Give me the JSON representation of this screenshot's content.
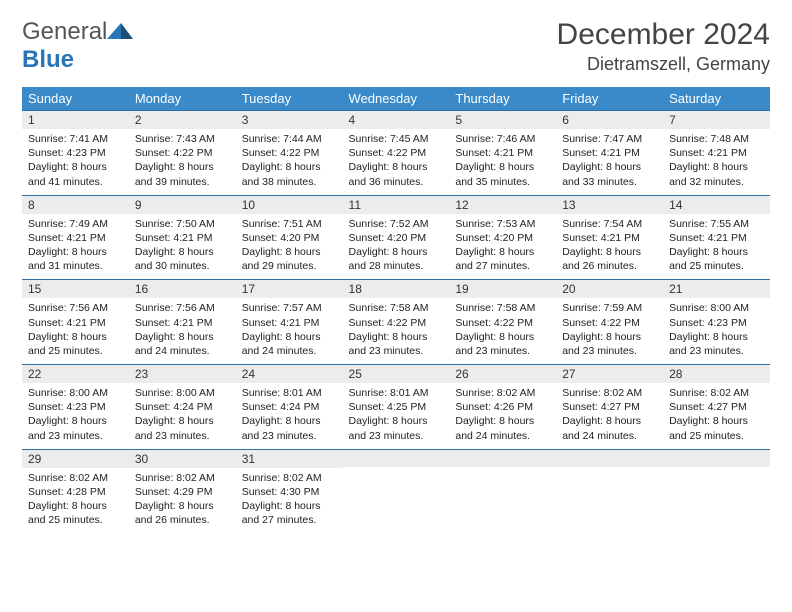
{
  "logo": {
    "word1": "General",
    "word2": "Blue"
  },
  "month_title": "December 2024",
  "location": "Dietramszell, Germany",
  "colors": {
    "header_bg": "#3a8ac9",
    "header_text": "#ffffff",
    "daynum_bg": "#ececec",
    "row_border": "#2f6fa3",
    "logo_gray": "#555555",
    "logo_blue": "#2875b8"
  },
  "day_headers": [
    "Sunday",
    "Monday",
    "Tuesday",
    "Wednesday",
    "Thursday",
    "Friday",
    "Saturday"
  ],
  "weeks": [
    [
      {
        "n": "1",
        "sr": "Sunrise: 7:41 AM",
        "ss": "Sunset: 4:23 PM",
        "d1": "Daylight: 8 hours",
        "d2": "and 41 minutes."
      },
      {
        "n": "2",
        "sr": "Sunrise: 7:43 AM",
        "ss": "Sunset: 4:22 PM",
        "d1": "Daylight: 8 hours",
        "d2": "and 39 minutes."
      },
      {
        "n": "3",
        "sr": "Sunrise: 7:44 AM",
        "ss": "Sunset: 4:22 PM",
        "d1": "Daylight: 8 hours",
        "d2": "and 38 minutes."
      },
      {
        "n": "4",
        "sr": "Sunrise: 7:45 AM",
        "ss": "Sunset: 4:22 PM",
        "d1": "Daylight: 8 hours",
        "d2": "and 36 minutes."
      },
      {
        "n": "5",
        "sr": "Sunrise: 7:46 AM",
        "ss": "Sunset: 4:21 PM",
        "d1": "Daylight: 8 hours",
        "d2": "and 35 minutes."
      },
      {
        "n": "6",
        "sr": "Sunrise: 7:47 AM",
        "ss": "Sunset: 4:21 PM",
        "d1": "Daylight: 8 hours",
        "d2": "and 33 minutes."
      },
      {
        "n": "7",
        "sr": "Sunrise: 7:48 AM",
        "ss": "Sunset: 4:21 PM",
        "d1": "Daylight: 8 hours",
        "d2": "and 32 minutes."
      }
    ],
    [
      {
        "n": "8",
        "sr": "Sunrise: 7:49 AM",
        "ss": "Sunset: 4:21 PM",
        "d1": "Daylight: 8 hours",
        "d2": "and 31 minutes."
      },
      {
        "n": "9",
        "sr": "Sunrise: 7:50 AM",
        "ss": "Sunset: 4:21 PM",
        "d1": "Daylight: 8 hours",
        "d2": "and 30 minutes."
      },
      {
        "n": "10",
        "sr": "Sunrise: 7:51 AM",
        "ss": "Sunset: 4:20 PM",
        "d1": "Daylight: 8 hours",
        "d2": "and 29 minutes."
      },
      {
        "n": "11",
        "sr": "Sunrise: 7:52 AM",
        "ss": "Sunset: 4:20 PM",
        "d1": "Daylight: 8 hours",
        "d2": "and 28 minutes."
      },
      {
        "n": "12",
        "sr": "Sunrise: 7:53 AM",
        "ss": "Sunset: 4:20 PM",
        "d1": "Daylight: 8 hours",
        "d2": "and 27 minutes."
      },
      {
        "n": "13",
        "sr": "Sunrise: 7:54 AM",
        "ss": "Sunset: 4:21 PM",
        "d1": "Daylight: 8 hours",
        "d2": "and 26 minutes."
      },
      {
        "n": "14",
        "sr": "Sunrise: 7:55 AM",
        "ss": "Sunset: 4:21 PM",
        "d1": "Daylight: 8 hours",
        "d2": "and 25 minutes."
      }
    ],
    [
      {
        "n": "15",
        "sr": "Sunrise: 7:56 AM",
        "ss": "Sunset: 4:21 PM",
        "d1": "Daylight: 8 hours",
        "d2": "and 25 minutes."
      },
      {
        "n": "16",
        "sr": "Sunrise: 7:56 AM",
        "ss": "Sunset: 4:21 PM",
        "d1": "Daylight: 8 hours",
        "d2": "and 24 minutes."
      },
      {
        "n": "17",
        "sr": "Sunrise: 7:57 AM",
        "ss": "Sunset: 4:21 PM",
        "d1": "Daylight: 8 hours",
        "d2": "and 24 minutes."
      },
      {
        "n": "18",
        "sr": "Sunrise: 7:58 AM",
        "ss": "Sunset: 4:22 PM",
        "d1": "Daylight: 8 hours",
        "d2": "and 23 minutes."
      },
      {
        "n": "19",
        "sr": "Sunrise: 7:58 AM",
        "ss": "Sunset: 4:22 PM",
        "d1": "Daylight: 8 hours",
        "d2": "and 23 minutes."
      },
      {
        "n": "20",
        "sr": "Sunrise: 7:59 AM",
        "ss": "Sunset: 4:22 PM",
        "d1": "Daylight: 8 hours",
        "d2": "and 23 minutes."
      },
      {
        "n": "21",
        "sr": "Sunrise: 8:00 AM",
        "ss": "Sunset: 4:23 PM",
        "d1": "Daylight: 8 hours",
        "d2": "and 23 minutes."
      }
    ],
    [
      {
        "n": "22",
        "sr": "Sunrise: 8:00 AM",
        "ss": "Sunset: 4:23 PM",
        "d1": "Daylight: 8 hours",
        "d2": "and 23 minutes."
      },
      {
        "n": "23",
        "sr": "Sunrise: 8:00 AM",
        "ss": "Sunset: 4:24 PM",
        "d1": "Daylight: 8 hours",
        "d2": "and 23 minutes."
      },
      {
        "n": "24",
        "sr": "Sunrise: 8:01 AM",
        "ss": "Sunset: 4:24 PM",
        "d1": "Daylight: 8 hours",
        "d2": "and 23 minutes."
      },
      {
        "n": "25",
        "sr": "Sunrise: 8:01 AM",
        "ss": "Sunset: 4:25 PM",
        "d1": "Daylight: 8 hours",
        "d2": "and 23 minutes."
      },
      {
        "n": "26",
        "sr": "Sunrise: 8:02 AM",
        "ss": "Sunset: 4:26 PM",
        "d1": "Daylight: 8 hours",
        "d2": "and 24 minutes."
      },
      {
        "n": "27",
        "sr": "Sunrise: 8:02 AM",
        "ss": "Sunset: 4:27 PM",
        "d1": "Daylight: 8 hours",
        "d2": "and 24 minutes."
      },
      {
        "n": "28",
        "sr": "Sunrise: 8:02 AM",
        "ss": "Sunset: 4:27 PM",
        "d1": "Daylight: 8 hours",
        "d2": "and 25 minutes."
      }
    ],
    [
      {
        "n": "29",
        "sr": "Sunrise: 8:02 AM",
        "ss": "Sunset: 4:28 PM",
        "d1": "Daylight: 8 hours",
        "d2": "and 25 minutes."
      },
      {
        "n": "30",
        "sr": "Sunrise: 8:02 AM",
        "ss": "Sunset: 4:29 PM",
        "d1": "Daylight: 8 hours",
        "d2": "and 26 minutes."
      },
      {
        "n": "31",
        "sr": "Sunrise: 8:02 AM",
        "ss": "Sunset: 4:30 PM",
        "d1": "Daylight: 8 hours",
        "d2": "and 27 minutes."
      },
      {
        "empty": true
      },
      {
        "empty": true
      },
      {
        "empty": true
      },
      {
        "empty": true
      }
    ]
  ]
}
